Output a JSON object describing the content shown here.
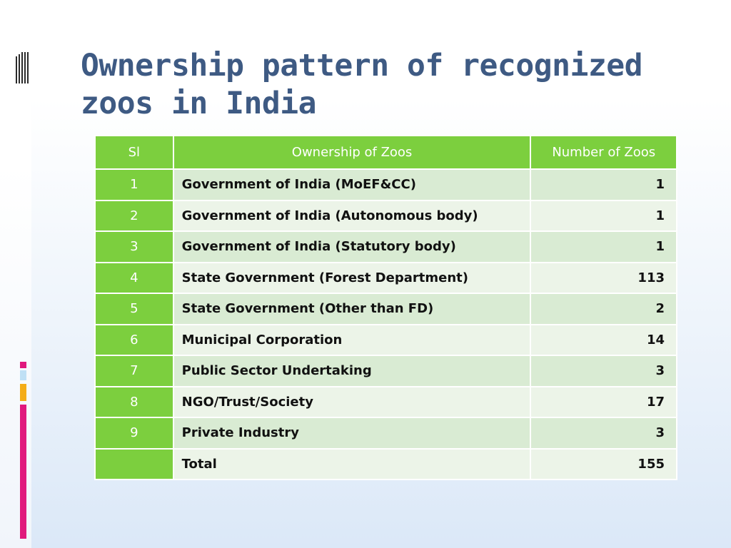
{
  "slide": {
    "title": "Ownership pattern of recognized zoos in India",
    "icon": "vertical-bars-icon",
    "colors": {
      "title": "#3e5a83",
      "header": "#7ccf3e",
      "row_dark": "#d9ebd3",
      "row_light": "#ecf4e8",
      "accent_pink": "#e0197d",
      "accent_orange": "#f4ad18",
      "accent_blue": "#bfe0f5"
    }
  },
  "table": {
    "headers": [
      "Sl",
      "Ownership of Zoos",
      "Number of Zoos"
    ],
    "rows": [
      {
        "sl": "1",
        "ownership": "Government of India (MoEF&CC)",
        "count": "1"
      },
      {
        "sl": "2",
        "ownership": "Government of India (Autonomous body)",
        "count": "1"
      },
      {
        "sl": "3",
        "ownership": "Government of India (Statutory body)",
        "count": "1"
      },
      {
        "sl": "4",
        "ownership": "State Government (Forest Department)",
        "count": "113"
      },
      {
        "sl": "5",
        "ownership": "State Government (Other than FD)",
        "count": "2"
      },
      {
        "sl": "6",
        "ownership": "Municipal Corporation",
        "count": "14"
      },
      {
        "sl": "7",
        "ownership": "Public Sector Undertaking",
        "count": "3"
      },
      {
        "sl": "8",
        "ownership": "NGO/Trust/Society",
        "count": "17"
      },
      {
        "sl": "9",
        "ownership": "Private Industry",
        "count": "3"
      },
      {
        "sl": "",
        "ownership": "Total",
        "count": "155"
      }
    ]
  }
}
